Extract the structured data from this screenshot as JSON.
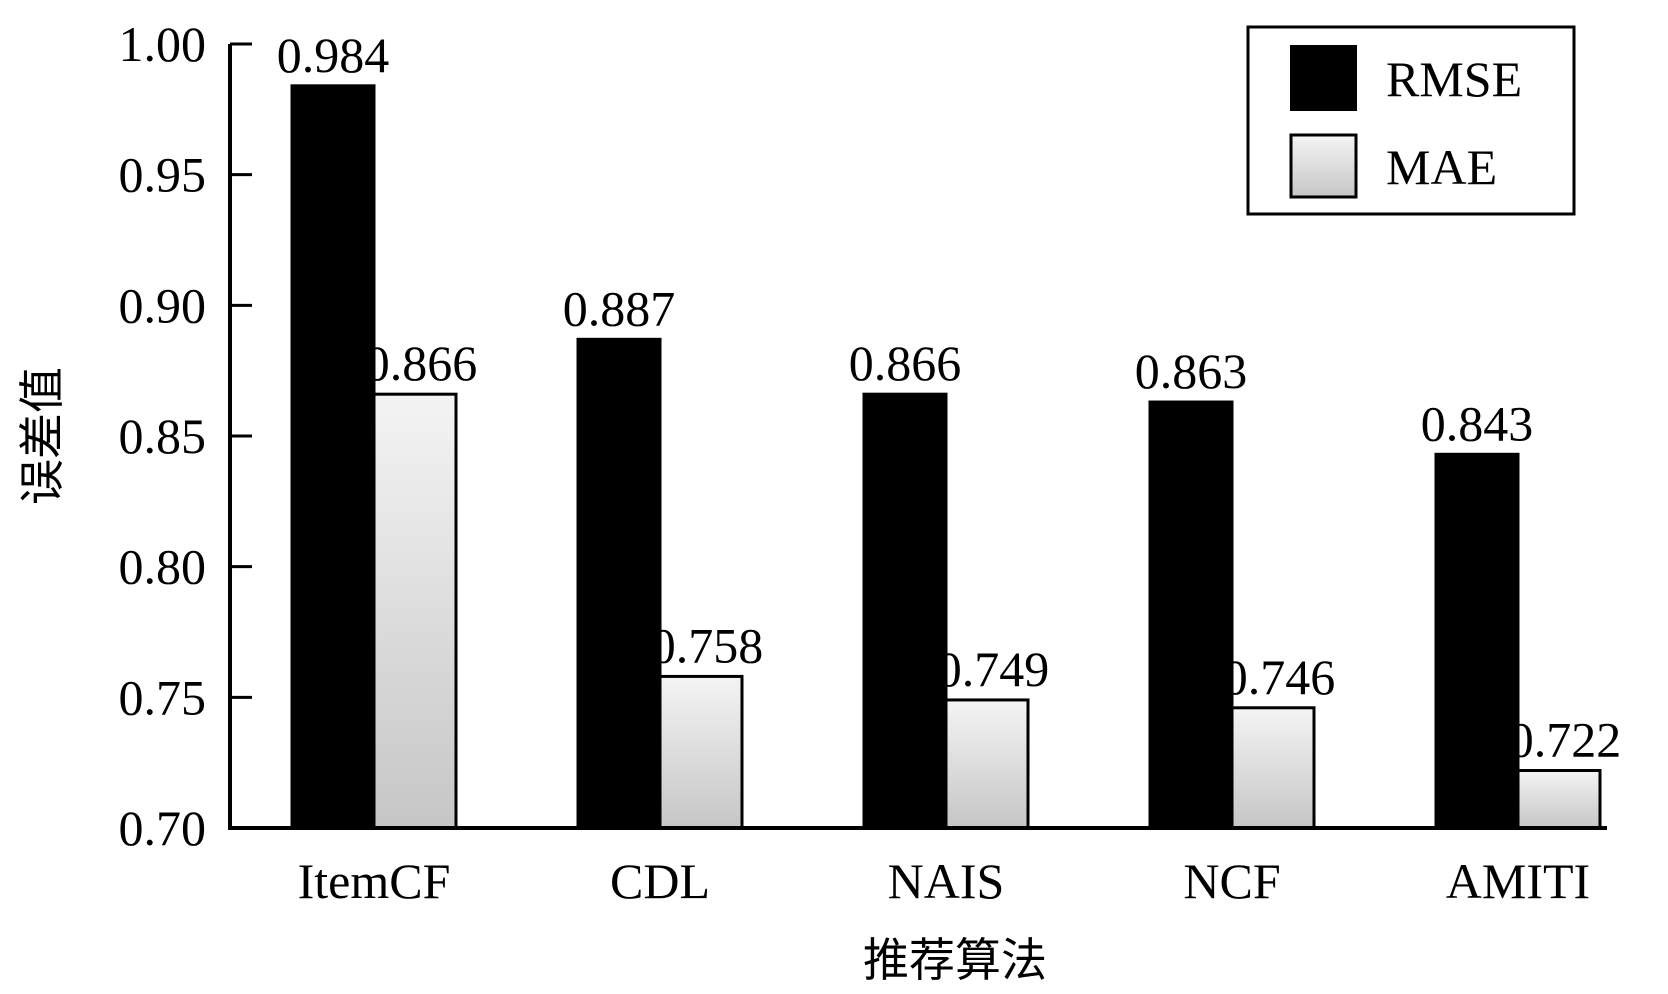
{
  "chart_data": {
    "type": "bar",
    "title": "",
    "xlabel": "推荐算法",
    "ylabel": "误差值",
    "categories": [
      "ItemCF",
      "CDL",
      "NAIS",
      "NCF",
      "AMITI"
    ],
    "series": [
      {
        "name": "RMSE",
        "values": [
          0.984,
          0.887,
          0.866,
          0.863,
          0.843
        ],
        "color": "#000000"
      },
      {
        "name": "MAE",
        "values": [
          0.866,
          0.758,
          0.749,
          0.746,
          0.722
        ],
        "color": "#d9d9d9"
      }
    ],
    "value_labels": [
      [
        "0.984",
        "0.887",
        "0.866",
        "0.863",
        "0.843"
      ],
      [
        "0.866",
        "0.758",
        "0.749",
        "0.746",
        "0.722"
      ]
    ],
    "ylim": [
      0.7,
      1.0
    ],
    "yticks": [
      1.0,
      0.95,
      0.9,
      0.85,
      0.8,
      0.75,
      0.7
    ],
    "ytick_labels": [
      "1.00",
      "0.95",
      "0.90",
      "0.85",
      "0.80",
      "0.75",
      "0.70"
    ],
    "legend_position": "top-right",
    "grid": false
  }
}
